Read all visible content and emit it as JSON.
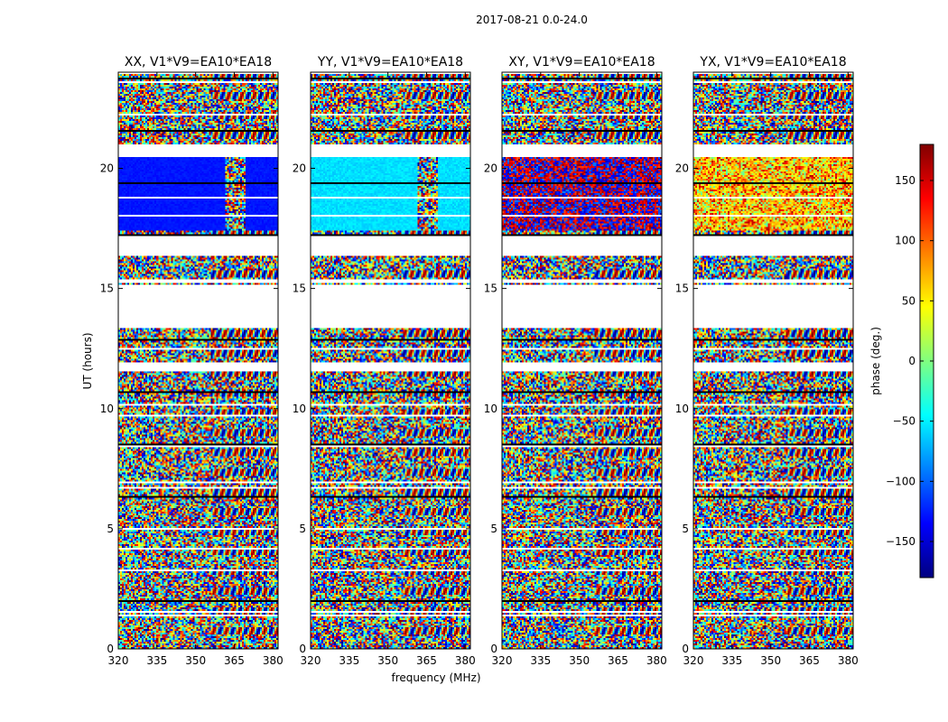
{
  "chart_data": {
    "type": "heatmap",
    "suptitle": "2017-08-21 0.0-24.0",
    "xlabel": "frequency (MHz)",
    "ylabel": "UT (hours)",
    "xlim": [
      320,
      382
    ],
    "ylim": [
      0,
      24
    ],
    "xticks": [
      320,
      335,
      350,
      365,
      380
    ],
    "yticks": [
      0,
      5,
      10,
      15,
      20
    ],
    "panels": [
      {
        "title": "XX, V1*V9=EA10*EA18",
        "pol": "XX"
      },
      {
        "title": "YY, V1*V9=EA10*EA18",
        "pol": "YY"
      },
      {
        "title": "XY, V1*V9=EA10*EA18",
        "pol": "XY"
      },
      {
        "title": "YX, V1*V9=EA10*EA18",
        "pol": "YX"
      }
    ],
    "flagged_ut_ranges": [
      [
        15.2,
        13.4
      ],
      [
        17.2,
        16.4
      ],
      [
        21.05,
        20.6
      ],
      [
        11.9,
        11.6
      ]
    ],
    "colorbar": {
      "label": "phase (deg.)",
      "range": [
        -180,
        180
      ],
      "ticks": [
        -150,
        -100,
        -50,
        0,
        50,
        100,
        150
      ],
      "tick_labels": [
        "−150",
        "−100",
        "−50",
        "0",
        "50",
        "100",
        "150"
      ],
      "colormap": "jet"
    }
  }
}
